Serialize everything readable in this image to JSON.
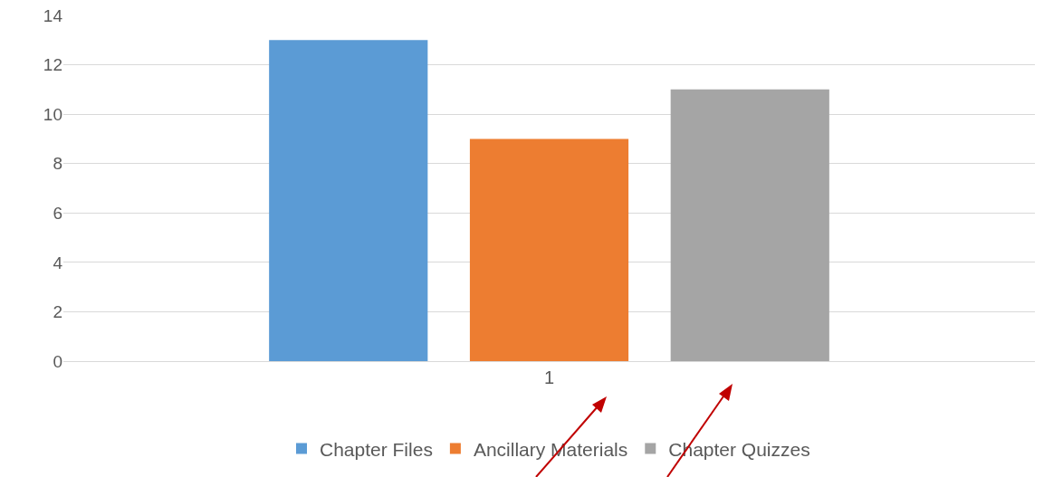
{
  "chart_data": {
    "type": "bar",
    "categories": [
      "1"
    ],
    "series": [
      {
        "name": "Chapter Files",
        "color": "#5b9bd5",
        "values": [
          13
        ]
      },
      {
        "name": "Ancillary Materials",
        "color": "#ed7d31",
        "values": [
          9
        ]
      },
      {
        "name": "Chapter Quizzes",
        "color": "#a5a5a5",
        "values": [
          11
        ]
      }
    ],
    "ylim": [
      0,
      14
    ],
    "yticks": [
      0,
      2,
      4,
      6,
      8,
      10,
      12,
      14
    ],
    "grid": "y",
    "legend": "bottom"
  }
}
